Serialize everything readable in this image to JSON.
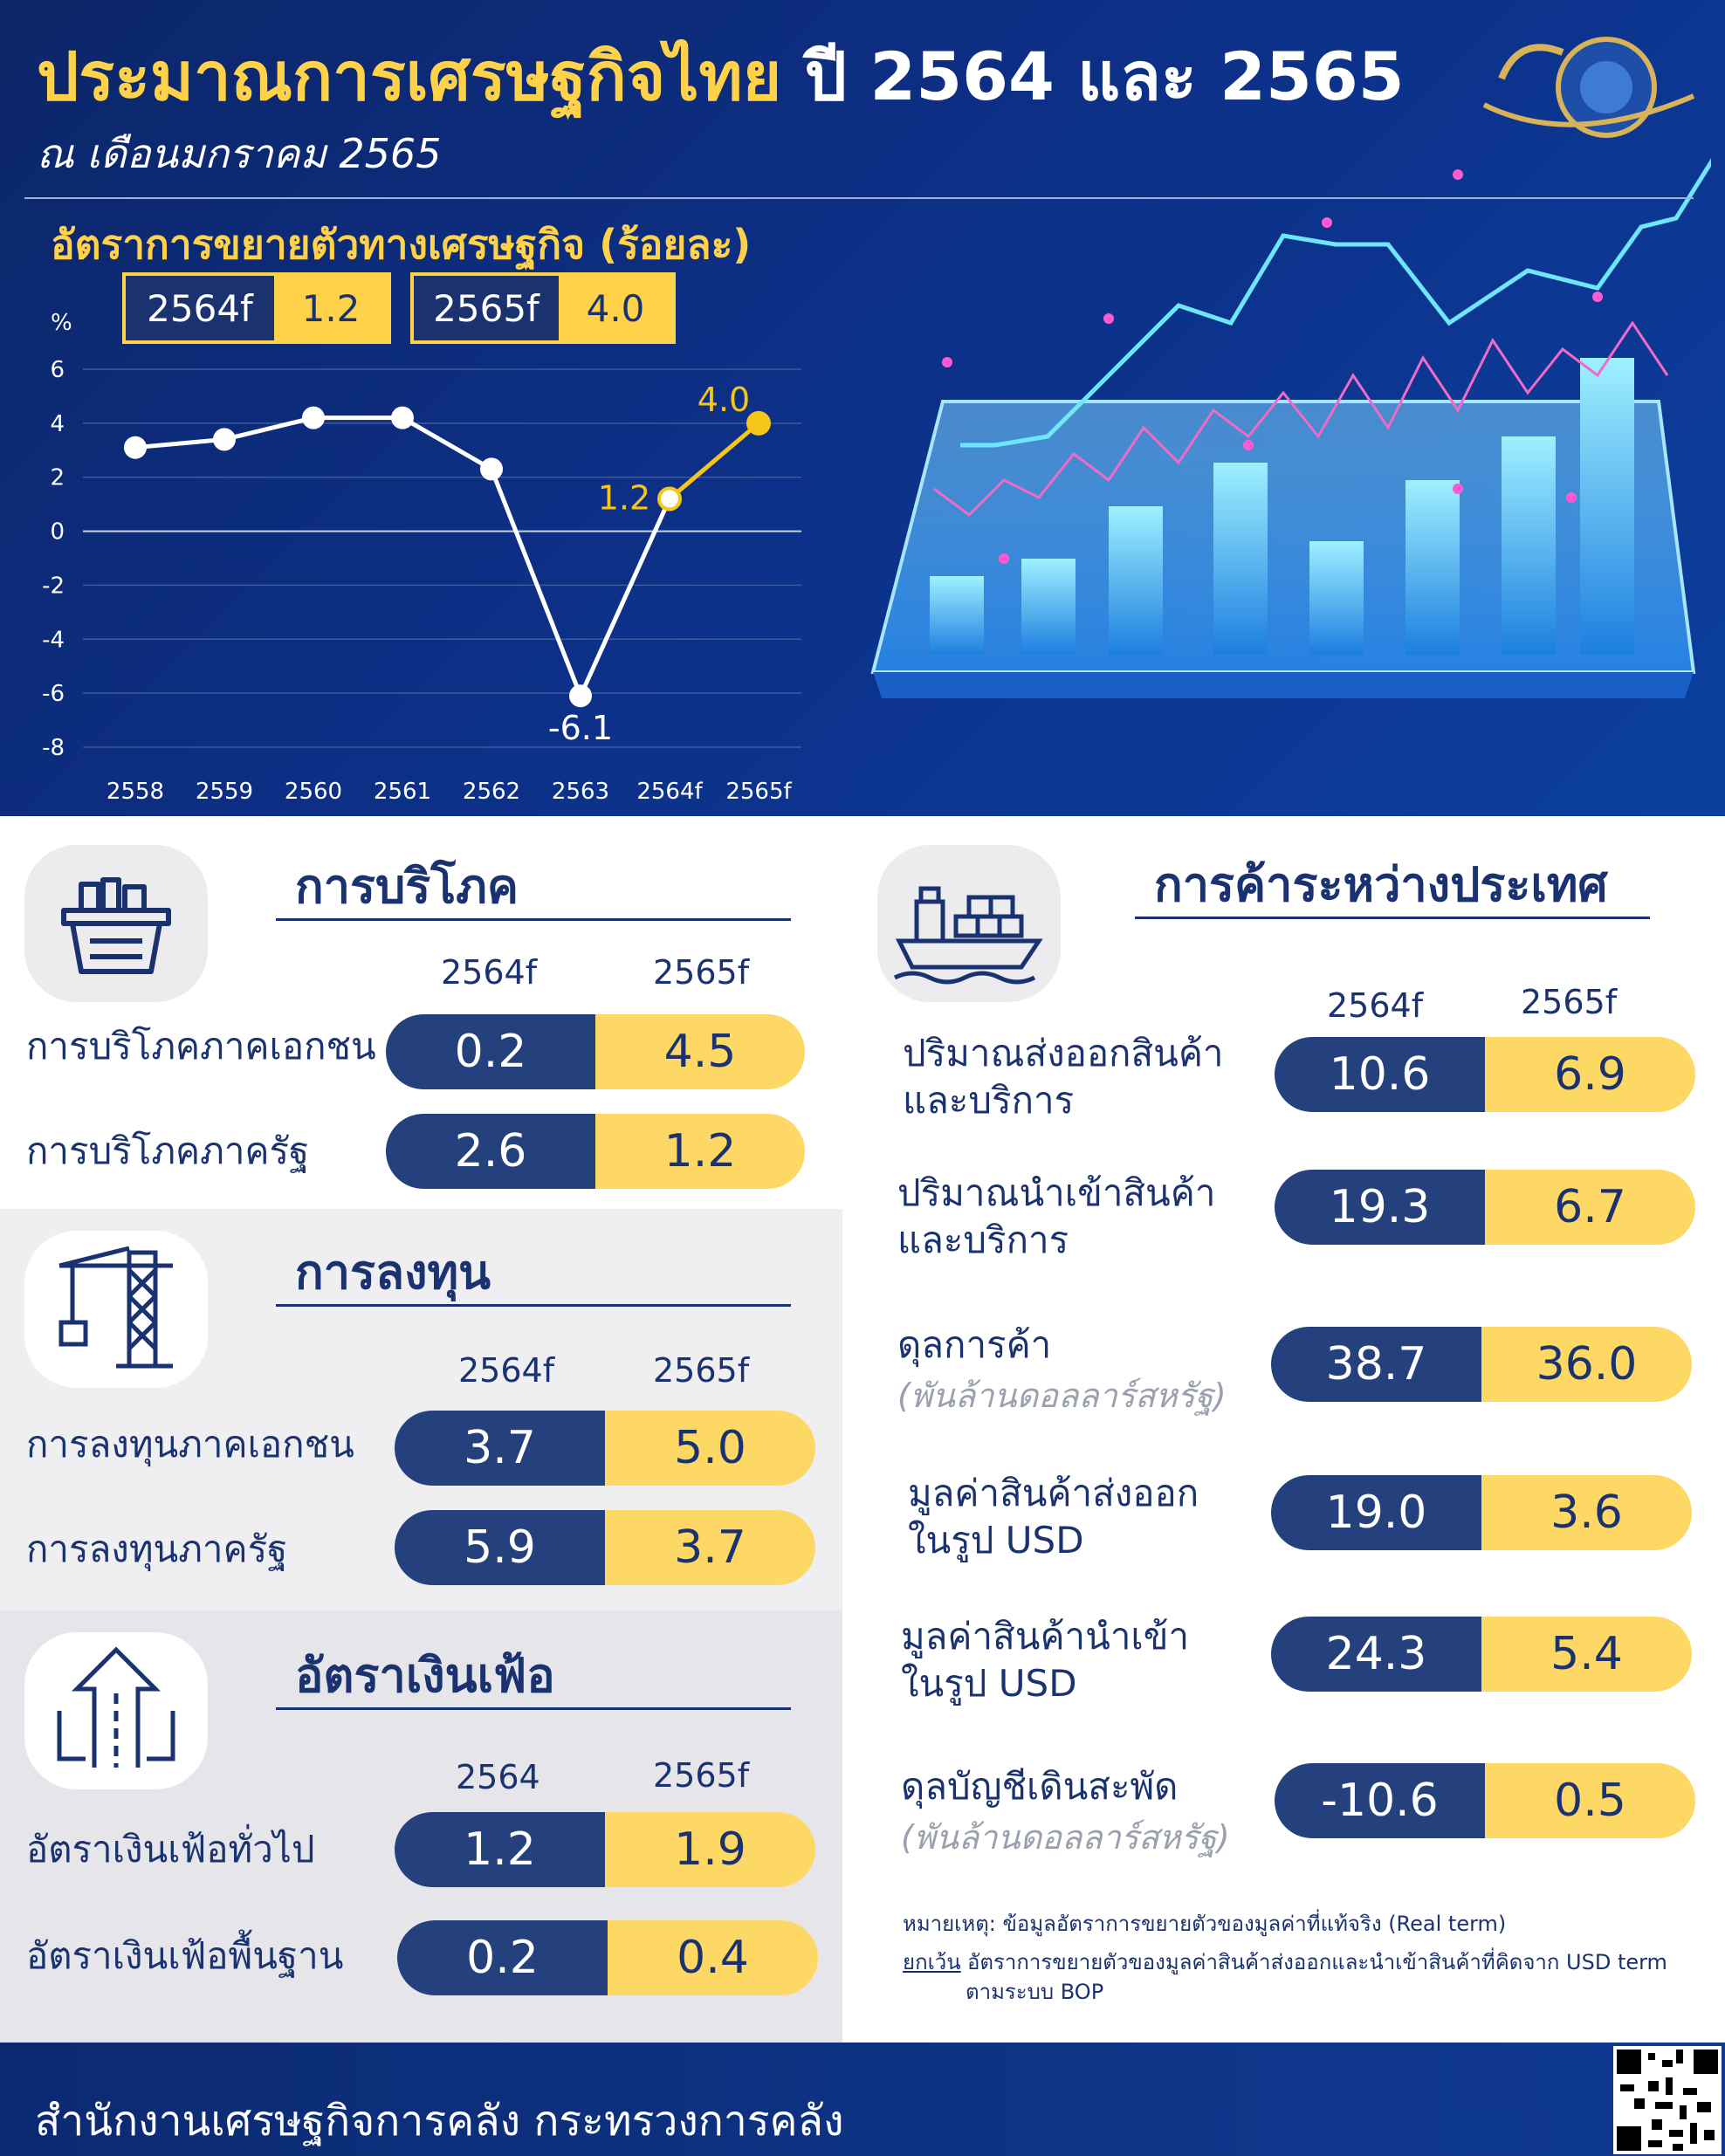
{
  "header": {
    "title_main": "ประมาณการเศรษฐกิจไทย",
    "title_years": "ปี 2564 และ 2565",
    "subtitle": "ณ เดือนมกราคม 2565",
    "growth_title": "อัตราการขยายตัวทางเศรษฐกิจ (ร้อยละ)",
    "forecast_boxes": [
      {
        "year": "2564f",
        "value": "1.2"
      },
      {
        "year": "2565f",
        "value": "4.0"
      }
    ]
  },
  "chart_data": {
    "type": "line",
    "ylabel": "%",
    "ylim": [
      -8,
      6
    ],
    "yticks": [
      6,
      4,
      2,
      0,
      -2,
      -4,
      -6,
      -8
    ],
    "categories": [
      "2558",
      "2559",
      "2560",
      "2561",
      "2562",
      "2563",
      "2564f",
      "2565f"
    ],
    "values": [
      3.1,
      3.4,
      4.2,
      4.2,
      2.3,
      -6.1,
      1.2,
      4.0
    ],
    "data_labels": {
      "5": "-6.1",
      "6": "1.2",
      "7": "4.0"
    },
    "colors": {
      "actual": "#ffffff",
      "forecast": "#f5c518"
    }
  },
  "consumption": {
    "title": "การบริโภค",
    "years": [
      "2564f",
      "2565f"
    ],
    "rows": [
      {
        "label": "การบริโภคภาคเอกชน",
        "a": "0.2",
        "b": "4.5"
      },
      {
        "label": "การบริโภคภาครัฐ",
        "a": "2.6",
        "b": "1.2"
      }
    ]
  },
  "investment": {
    "title": "การลงทุน",
    "years": [
      "2564f",
      "2565f"
    ],
    "rows": [
      {
        "label": "การลงทุนภาคเอกชน",
        "a": "3.7",
        "b": "5.0"
      },
      {
        "label": "การลงทุนภาครัฐ",
        "a": "5.9",
        "b": "3.7"
      }
    ]
  },
  "inflation": {
    "title": "อัตราเงินเฟ้อ",
    "years": [
      "2564",
      "2565f"
    ],
    "rows": [
      {
        "label": "อัตราเงินเฟ้อทั่วไป",
        "a": "1.2",
        "b": "1.9"
      },
      {
        "label": "อัตราเงินเฟ้อพื้นฐาน",
        "a": "0.2",
        "b": "0.4"
      }
    ]
  },
  "trade": {
    "title": "การค้าระหว่างประเทศ",
    "years": [
      "2564f",
      "2565f"
    ],
    "rows": [
      {
        "label1": "ปริมาณส่งออกสินค้า",
        "label2": "และบริการ",
        "a": "10.6",
        "b": "6.9"
      },
      {
        "label1": "ปริมาณนำเข้าสินค้า",
        "label2": "และบริการ",
        "a": "19.3",
        "b": "6.7"
      },
      {
        "label1": "ดุลการค้า",
        "note": "(พันล้านดอลลาร์สหรัฐ)",
        "a": "38.7",
        "b": "36.0"
      },
      {
        "label1": "มูลค่าสินค้าส่งออก",
        "label2": "ในรูป USD",
        "a": "19.0",
        "b": "3.6"
      },
      {
        "label1": "มูลค่าสินค้านำเข้า",
        "label2": "ในรูป USD",
        "a": "24.3",
        "b": "5.4"
      },
      {
        "label1": "ดุลบัญชีเดินสะพัด",
        "note": "(พันล้านดอลลาร์สหรัฐ)",
        "a": "-10.6",
        "b": "0.5"
      }
    ],
    "note1": "หมายเหตุ: ข้อมูลอัตราการขยายตัวของมูลค่าที่แท้จริง (Real term)",
    "note2_prefix": "ยกเว้น",
    "note2": "อัตราการขยายตัวของมูลค่าสินค้าส่งออกและนำเข้าสินค้าที่คิดจาก USD term",
    "note3": "ตามระบบ BOP"
  },
  "footer": {
    "text": "สำนักงานเศรษฐกิจการคลัง กระทรวงการคลัง"
  }
}
